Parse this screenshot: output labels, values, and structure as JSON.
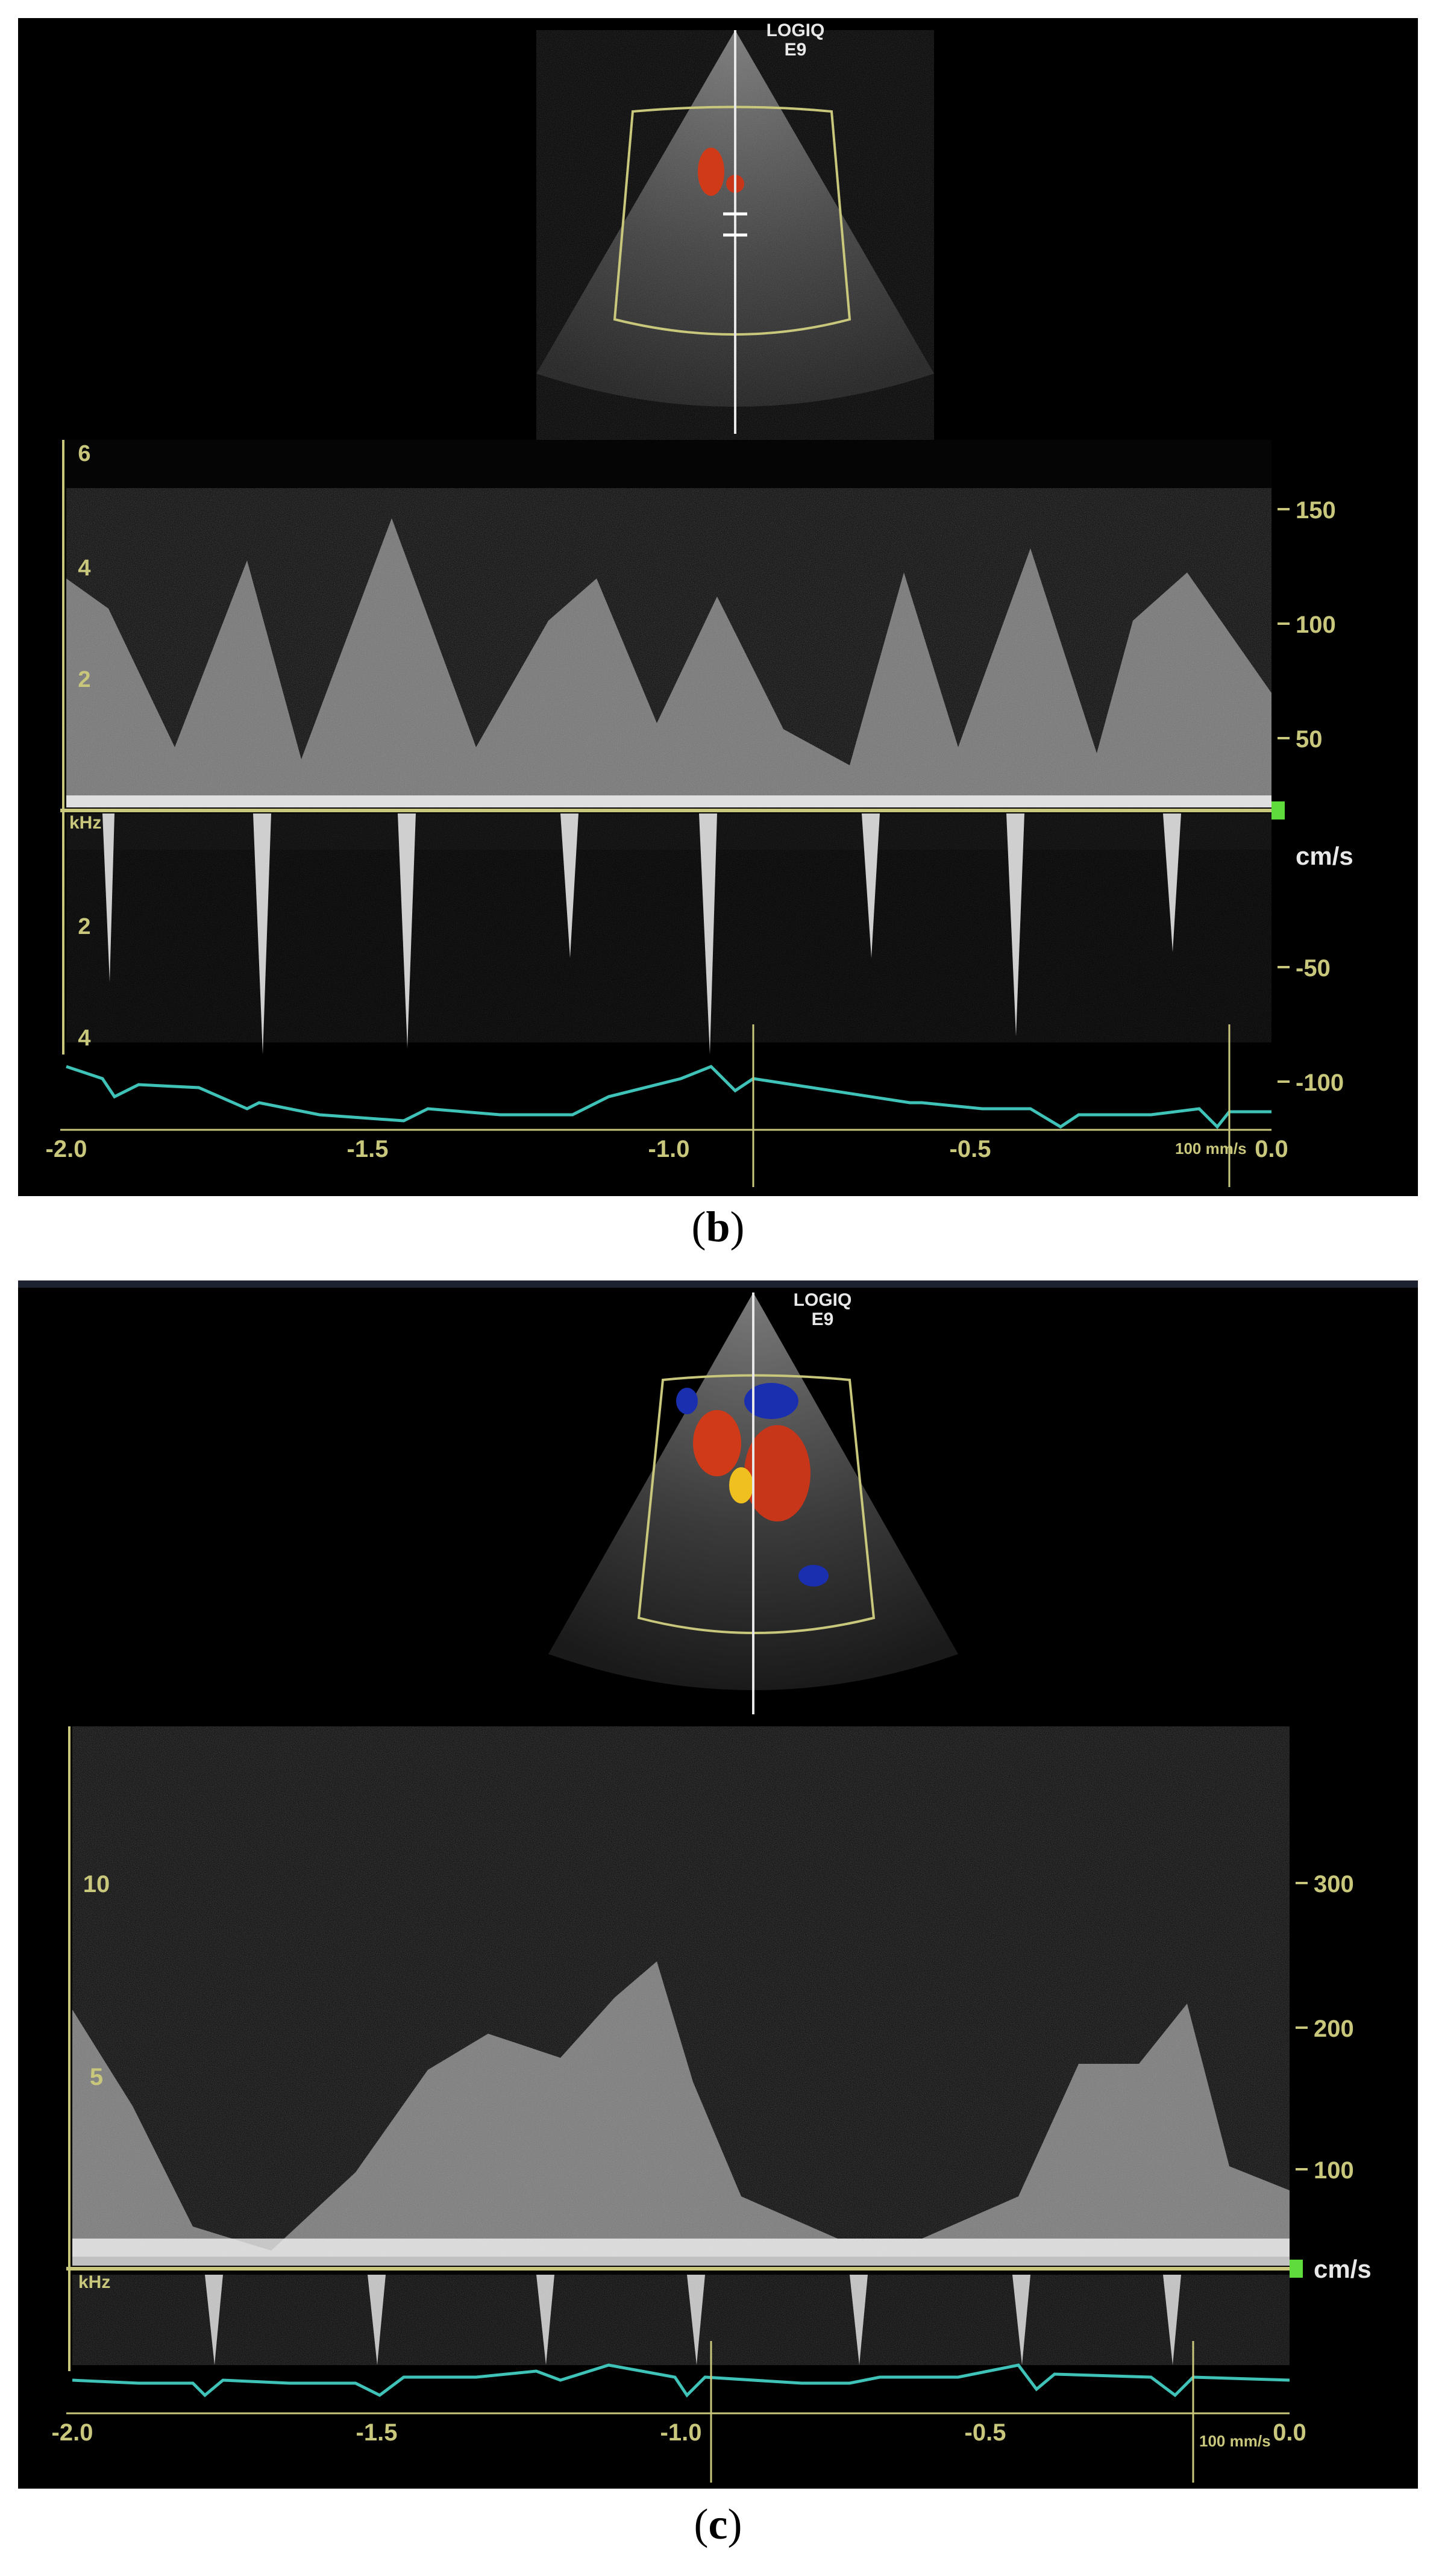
{
  "panels": [
    {
      "id": "b",
      "caption_letter": "b",
      "brand_line1": "LOGIQ",
      "brand_line2": "E9",
      "khz_ticks": [
        "6",
        "4",
        "2",
        "2",
        "4"
      ],
      "khz_unit": "kHz",
      "velocity_ticks": [
        "150",
        "100",
        "50",
        "-50",
        "-100"
      ],
      "velocity_unit": "cm/s",
      "time_ticks": [
        "-2.0",
        "-1.5",
        "-1.0",
        "-0.5",
        "0.0"
      ],
      "sweep_speed": "100 mm/s",
      "colors": {
        "axis": "#c8c77c",
        "ecg": "#3fc3b8",
        "marker": "#5fdc3c"
      }
    },
    {
      "id": "c",
      "caption_letter": "c",
      "brand_line1": "LOGIQ",
      "brand_line2": "E9",
      "khz_ticks": [
        "10",
        "5"
      ],
      "khz_unit": "kHz",
      "velocity_ticks": [
        "300",
        "200",
        "100"
      ],
      "velocity_unit": "cm/s",
      "time_ticks": [
        "-2.0",
        "-1.5",
        "-1.0",
        "-0.5",
        "0.0"
      ],
      "sweep_speed": "100 mm/s",
      "colors": {
        "axis": "#c8c77c",
        "ecg": "#3fc3b8",
        "marker": "#5fdc3c"
      }
    }
  ]
}
